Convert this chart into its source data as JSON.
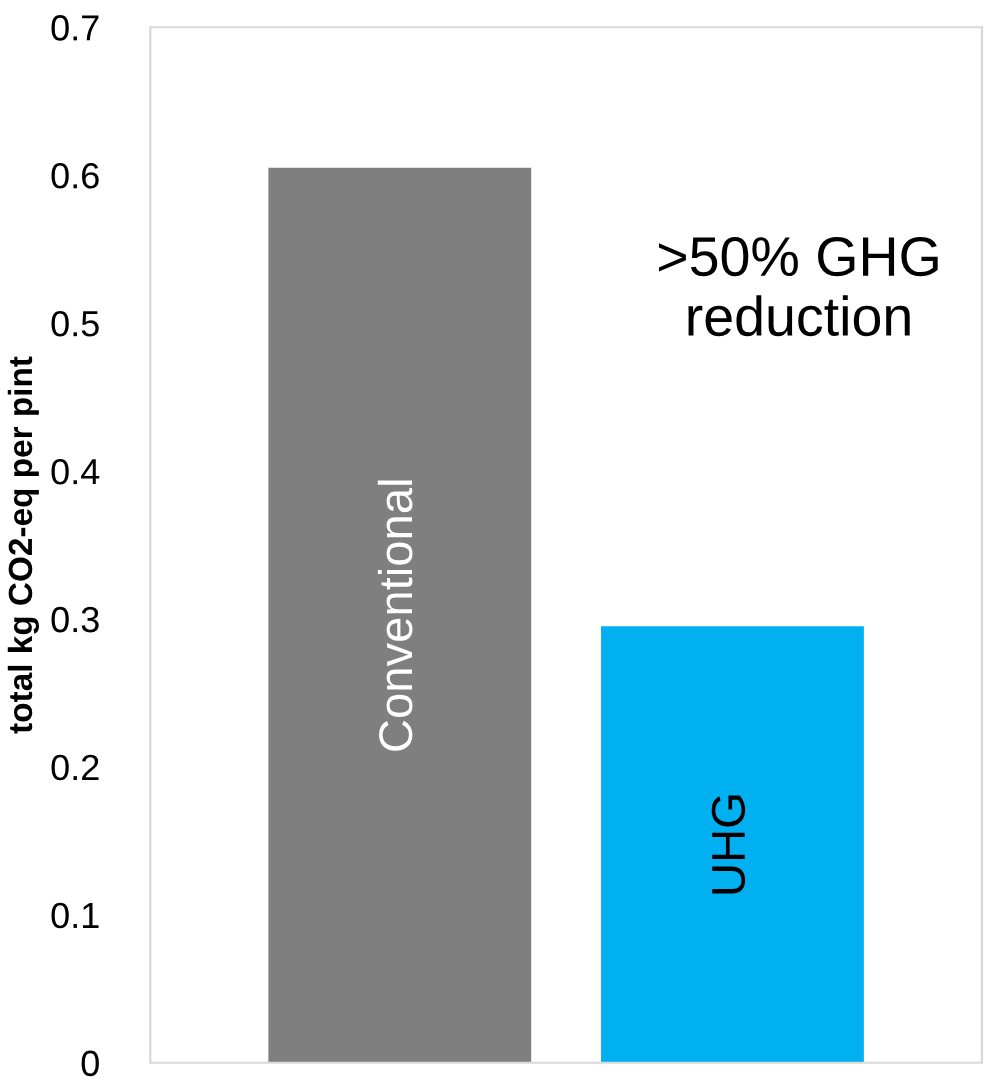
{
  "chart_data": {
    "type": "bar",
    "ylabel": "total kg CO2-eq per pint",
    "categories": [
      "Conventional",
      "UHG"
    ],
    "values": [
      0.605,
      0.295
    ],
    "colors": [
      "#7f7f7f",
      "#00b0f0"
    ],
    "ylim": [
      0,
      0.7
    ],
    "yticks": [
      0,
      0.1,
      0.2,
      0.3,
      0.4,
      0.5,
      0.6,
      0.7
    ],
    "grid": false,
    "annotations": [
      ">50% GHG reduction"
    ]
  }
}
